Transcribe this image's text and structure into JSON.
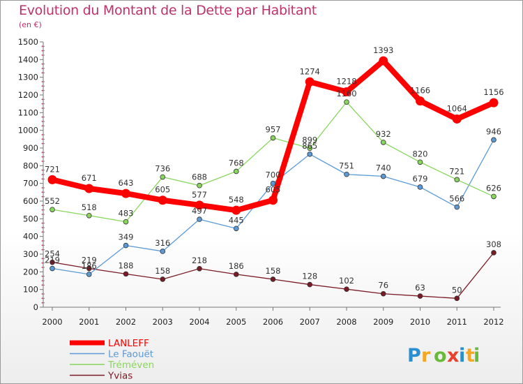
{
  "header": {
    "title": "Evolution du Montant de la Dette par Habitant",
    "unit": "(en €)"
  },
  "brand": {
    "letters": [
      "P",
      "r",
      "o",
      "x",
      "i",
      "t",
      "i"
    ],
    "colors": [
      "#2a8fd0",
      "#f5a623",
      "#6aba3a",
      "#e8412c",
      "#2a8fd0",
      "#f5a623",
      "#6aba3a"
    ]
  },
  "chart_data": {
    "type": "line",
    "title": "Evolution du Montant de la Dette par Habitant",
    "ylabel": "(en €)",
    "xlabel": "",
    "ylim": [
      0,
      1500
    ],
    "yticks": [
      0,
      100,
      200,
      300,
      400,
      500,
      600,
      700,
      800,
      900,
      1000,
      1100,
      1200,
      1300,
      1400,
      1500
    ],
    "categories": [
      "2000",
      "2001",
      "2002",
      "2003",
      "2004",
      "2005",
      "2006",
      "2007",
      "2008",
      "2009",
      "2010",
      "2011",
      "2012"
    ],
    "series": [
      {
        "name": "Yvias",
        "color": "#7a1a24",
        "values": [
          254,
          219,
          188,
          158,
          218,
          186,
          158,
          128,
          102,
          76,
          63,
          50,
          308
        ]
      },
      {
        "name": "Le Faouët",
        "color": "#5b9ad6",
        "values": [
          219,
          186,
          349,
          316,
          497,
          445,
          700,
          865,
          751,
          740,
          679,
          566,
          946
        ]
      },
      {
        "name": "Tréméven",
        "color": "#88d65c",
        "values": [
          552,
          518,
          483,
          736,
          688,
          768,
          957,
          899,
          1160,
          932,
          820,
          721,
          626
        ]
      },
      {
        "name": "LANLEFF",
        "color": "#ff0000",
        "values": [
          721,
          671,
          643,
          605,
          577,
          548,
          605,
          1274,
          1218,
          1393,
          1166,
          1064,
          1156
        ]
      }
    ],
    "legend_order": [
      "LANLEFF",
      "Le Faouët",
      "Tréméven",
      "Yvias"
    ],
    "legend_position": "bottom-left",
    "grid": false
  }
}
